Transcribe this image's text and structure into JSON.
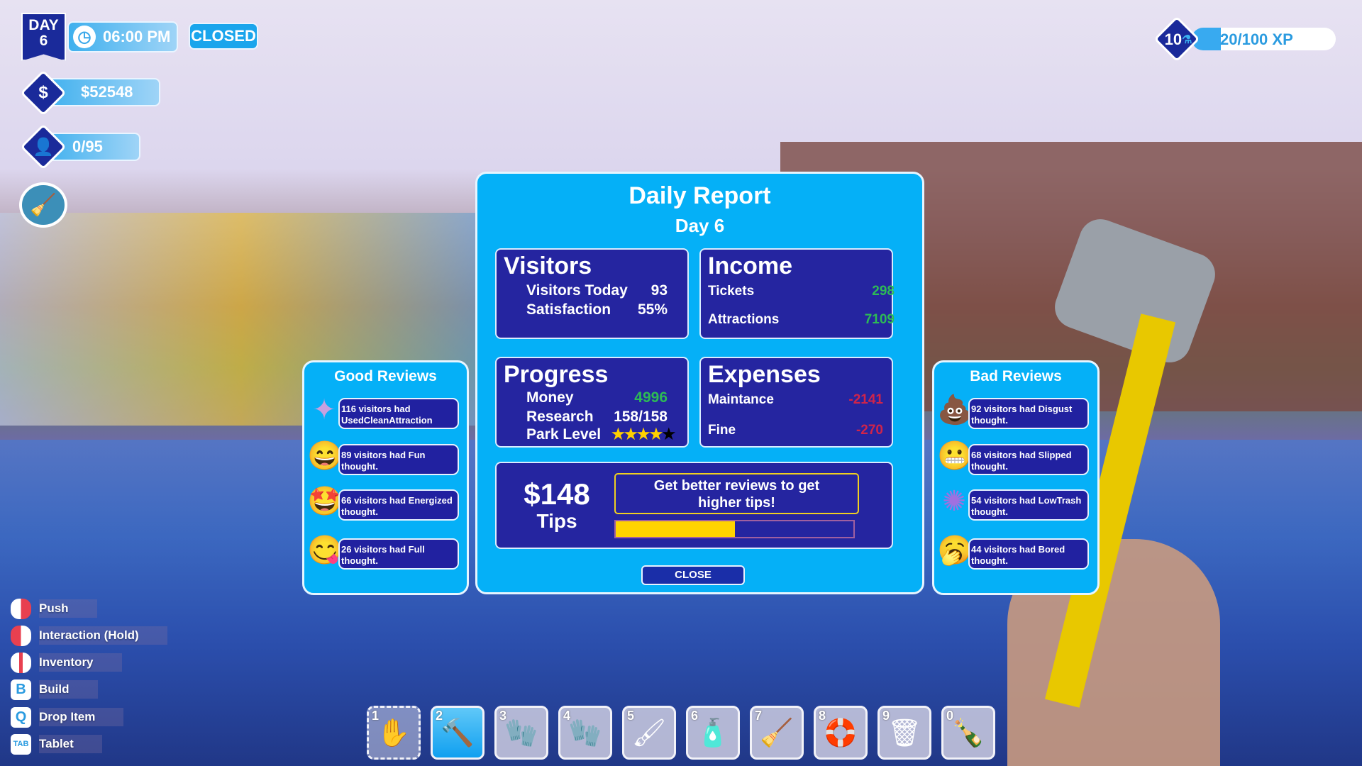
{
  "hud": {
    "day_label": "DAY",
    "day_number": "6",
    "time": "06:00 PM",
    "park_status": "CLOSED",
    "money": "$52548",
    "visitors": "0/95",
    "level": "10",
    "xp": "20/100 XP",
    "xp_progress": 0.2
  },
  "report": {
    "title": "Daily Report",
    "subtitle": "Day 6",
    "visitors": {
      "heading": "Visitors",
      "rows": [
        {
          "label": "Visitors Today",
          "value": "93"
        },
        {
          "label": "Satisfaction",
          "value": "55%"
        }
      ]
    },
    "income": {
      "heading": "Income",
      "rows": [
        {
          "label": "Tickets",
          "value": "298"
        },
        {
          "label": "Attractions",
          "value": "7109"
        }
      ]
    },
    "progress": {
      "heading": "Progress",
      "money_label": "Money",
      "money_value": "4996",
      "research_label": "Research",
      "research_value": "158/158",
      "park_level_label": "Park Level",
      "park_level_stars": 4,
      "park_level_max": 5
    },
    "expenses": {
      "heading": "Expenses",
      "rows": [
        {
          "label": "Maintance",
          "value": "-2141"
        },
        {
          "label": "Fine",
          "value": "-270"
        }
      ]
    },
    "tips": {
      "amount": "$148",
      "label": "Tips",
      "hint": "Get better reviews to get higher tips!",
      "progress": 0.5
    },
    "close_label": "CLOSE"
  },
  "good_reviews": {
    "title": "Good Reviews",
    "items": [
      {
        "icon": "sparkles-icon",
        "text": "116 visitors had UsedCleanAttraction thought."
      },
      {
        "icon": "grinning-face-icon",
        "text": "89 visitors had Fun thought."
      },
      {
        "icon": "star-eyes-face-icon",
        "text": "66 visitors had Energized thought."
      },
      {
        "icon": "yum-face-icon",
        "text": "26 visitors had Full thought."
      }
    ]
  },
  "bad_reviews": {
    "title": "Bad Reviews",
    "items": [
      {
        "icon": "poop-icon",
        "text": "92 visitors had Disgust thought."
      },
      {
        "icon": "grimacing-face-icon",
        "text": "68 visitors had Slipped thought."
      },
      {
        "icon": "splat-icon",
        "text": "54 visitors had LowTrash thought."
      },
      {
        "icon": "yawning-face-icon",
        "text": "44 visitors had Bored thought."
      }
    ]
  },
  "controls": [
    {
      "key": "mouse-left",
      "label": "Push"
    },
    {
      "key": "mouse-left-hold",
      "label": "Interaction (Hold)"
    },
    {
      "key": "mouse-middle",
      "label": "Inventory"
    },
    {
      "key": "B",
      "label": "Build"
    },
    {
      "key": "Q",
      "label": "Drop Item"
    },
    {
      "key": "TAB",
      "label": "Tablet"
    }
  ],
  "hotbar": [
    {
      "n": "1",
      "icon": "hand-icon"
    },
    {
      "n": "2",
      "icon": "hammer-icon",
      "selected": true
    },
    {
      "n": "3",
      "icon": "glove-icon"
    },
    {
      "n": "4",
      "icon": "gloves-icon"
    },
    {
      "n": "5",
      "icon": "paint-roller-icon"
    },
    {
      "n": "6",
      "icon": "spray-can-icon"
    },
    {
      "n": "7",
      "icon": "broom-icon"
    },
    {
      "n": "8",
      "icon": "lifebuoy-icon"
    },
    {
      "n": "9",
      "icon": "trash-bag-icon"
    },
    {
      "n": "0",
      "icon": "bottle-icon"
    }
  ],
  "colors": {
    "panel": "#05b0f7",
    "box": "#2525a0",
    "positive": "#2dbb55",
    "negative": "#d0244a",
    "tips_bar": "#ffd400"
  }
}
